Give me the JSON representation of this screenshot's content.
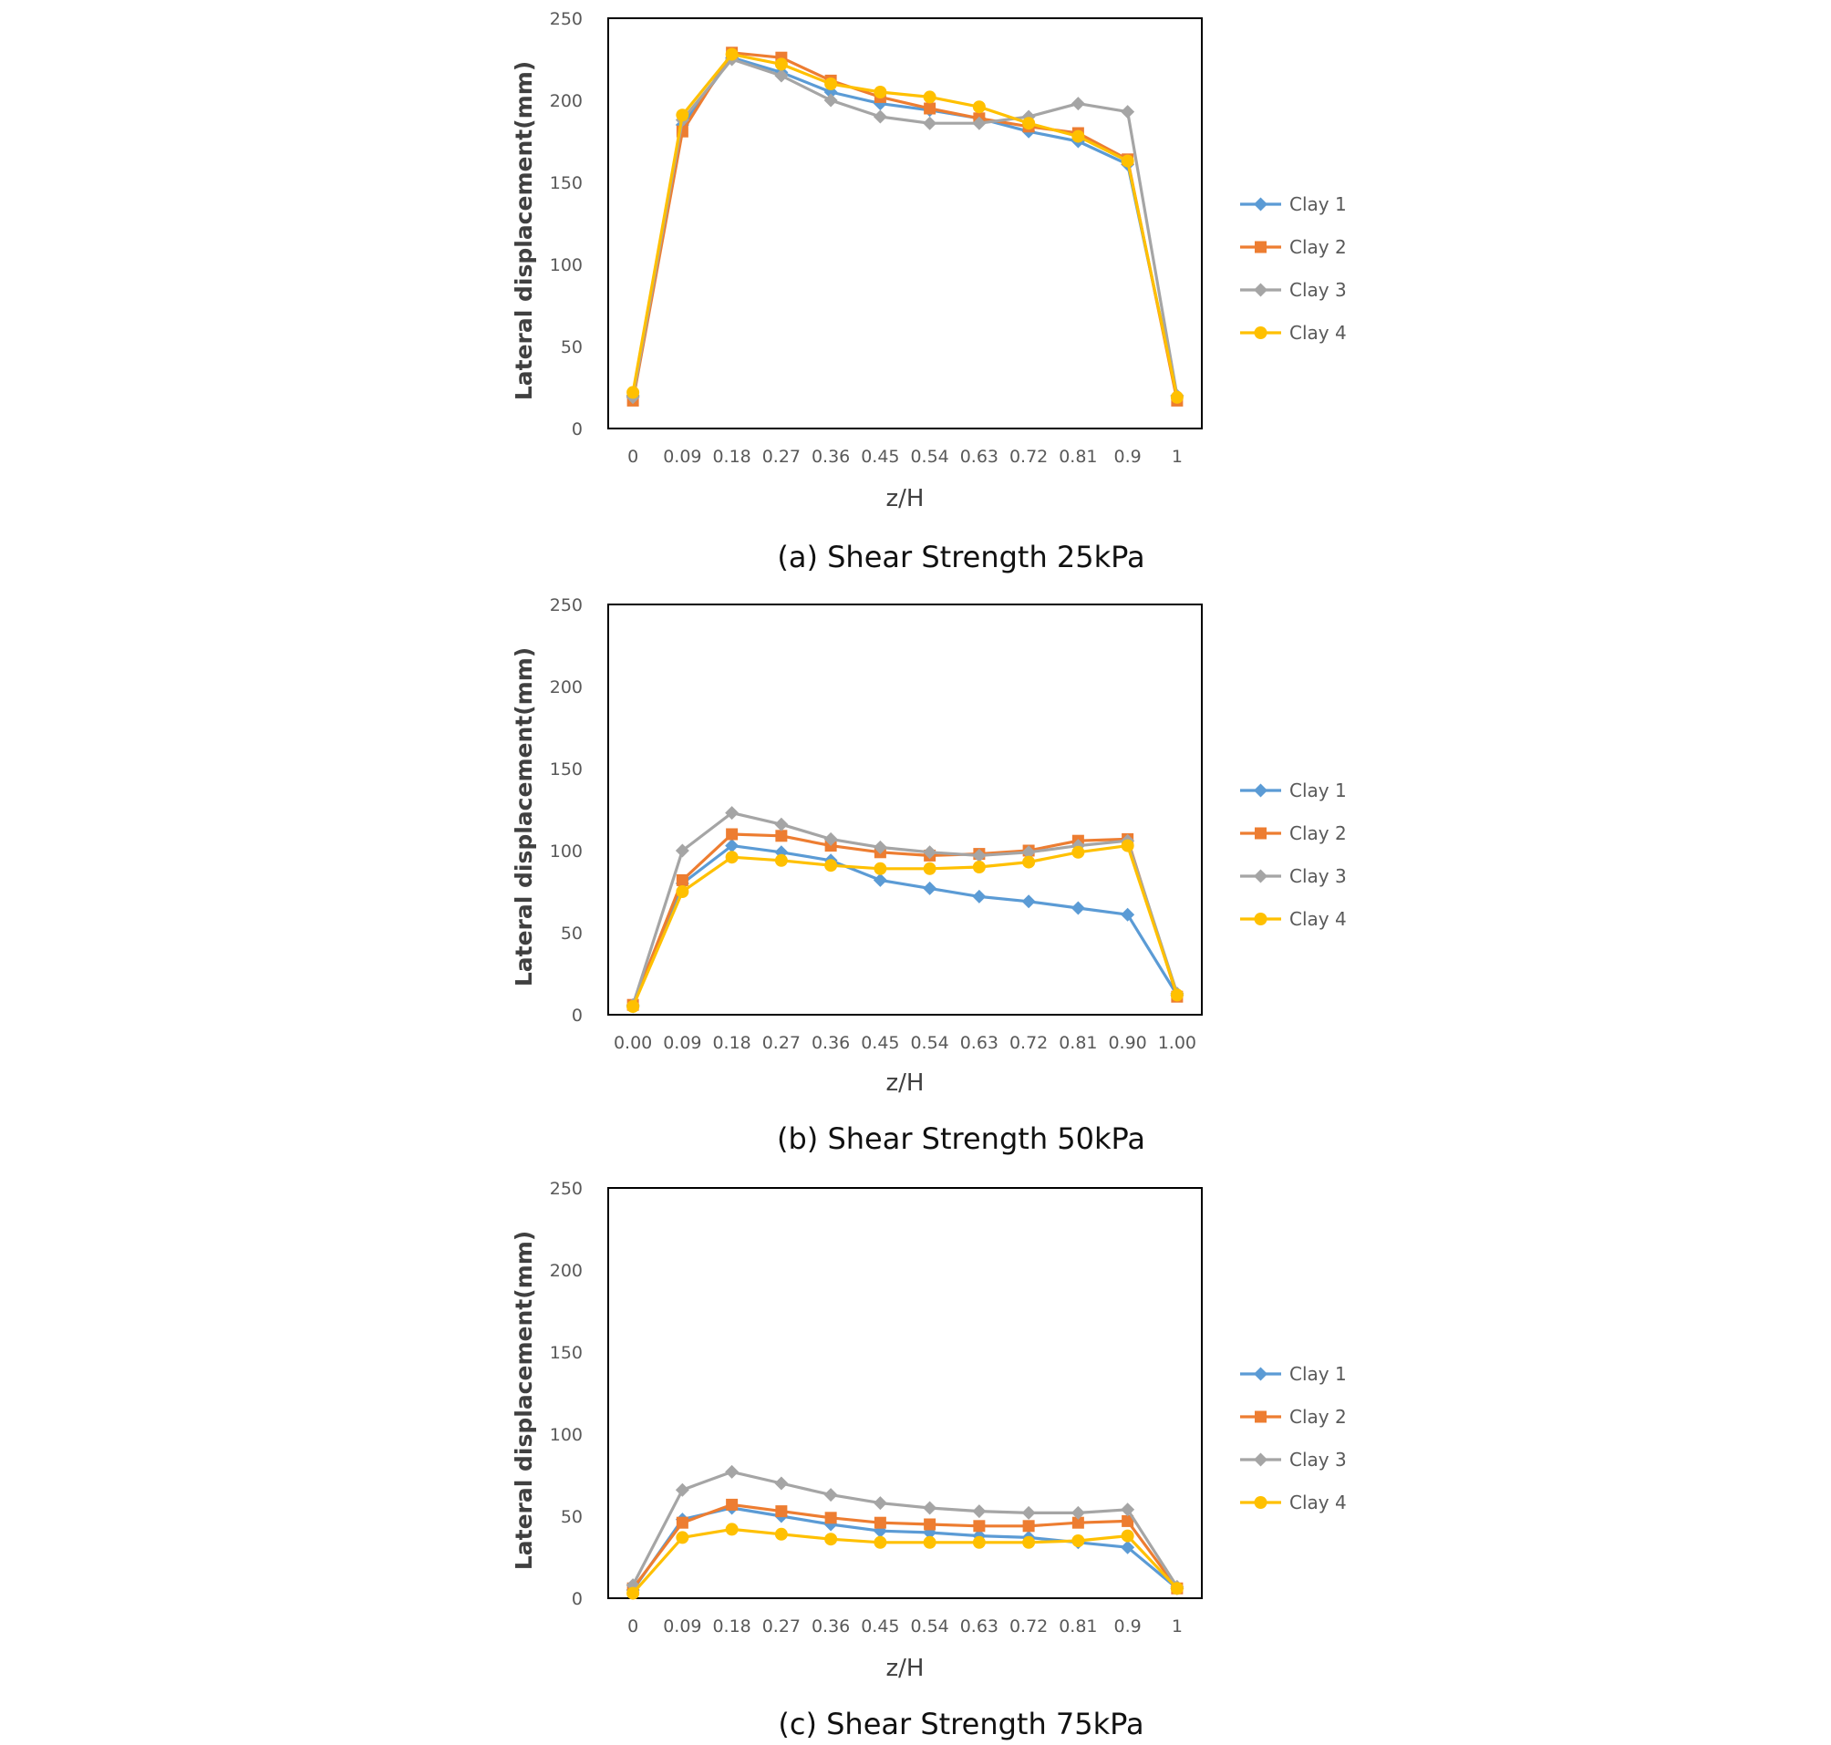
{
  "colors": {
    "Clay 1": "#5B9BD5",
    "Clay 2": "#ED7D31",
    "Clay 3": "#A5A5A5",
    "Clay 4": "#FFC000"
  },
  "chart_data": [
    {
      "type": "line",
      "caption": "(a) Shear Strength 25kPa",
      "xlabel": "z/H",
      "ylabel": "Lateral displacement(mm)",
      "ylim": [
        0,
        250
      ],
      "yticks": [
        "0",
        "50",
        "100",
        "150",
        "200",
        "250"
      ],
      "categories": [
        "0",
        "0.09",
        "0.18",
        "0.27",
        "0.36",
        "0.45",
        "0.54",
        "0.63",
        "0.72",
        "0.81",
        "0.9",
        "1"
      ],
      "legend_position": "right",
      "series": [
        {
          "name": "Clay 1",
          "marker": "diamond",
          "values": [
            20,
            185,
            226,
            217,
            205,
            198,
            194,
            189,
            181,
            175,
            161,
            20
          ]
        },
        {
          "name": "Clay 2",
          "marker": "square",
          "values": [
            17,
            181,
            229,
            226,
            212,
            202,
            195,
            189,
            184,
            180,
            164,
            17
          ]
        },
        {
          "name": "Clay 3",
          "marker": "diamond",
          "values": [
            19,
            188,
            225,
            215,
            200,
            190,
            186,
            186,
            190,
            198,
            193,
            20
          ]
        },
        {
          "name": "Clay 4",
          "marker": "circle",
          "values": [
            22,
            191,
            228,
            222,
            210,
            205,
            202,
            196,
            186,
            178,
            163,
            19
          ]
        }
      ]
    },
    {
      "type": "line",
      "caption": "(b) Shear Strength 50kPa",
      "xlabel": "z/H",
      "ylabel": "Lateral displacement(mm)",
      "ylim": [
        0,
        250
      ],
      "yticks": [
        "0",
        "50",
        "100",
        "150",
        "200",
        "250"
      ],
      "categories": [
        "0.00",
        "0.09",
        "0.18",
        "0.27",
        "0.36",
        "0.45",
        "0.54",
        "0.63",
        "0.72",
        "0.81",
        "0.90",
        "1.00"
      ],
      "legend_position": "right",
      "series": [
        {
          "name": "Clay 1",
          "marker": "diamond",
          "values": [
            5,
            80,
            103,
            99,
            94,
            82,
            77,
            72,
            69,
            65,
            61,
            12
          ]
        },
        {
          "name": "Clay 2",
          "marker": "square",
          "values": [
            6,
            82,
            110,
            109,
            103,
            99,
            97,
            98,
            100,
            106,
            107,
            11
          ]
        },
        {
          "name": "Clay 3",
          "marker": "diamond",
          "values": [
            6,
            100,
            123,
            116,
            107,
            102,
            99,
            97,
            99,
            103,
            106,
            13
          ]
        },
        {
          "name": "Clay 4",
          "marker": "circle",
          "values": [
            5,
            75,
            96,
            94,
            91,
            89,
            89,
            90,
            93,
            99,
            103,
            12
          ]
        }
      ]
    },
    {
      "type": "line",
      "caption": "(c) Shear Strength 75kPa",
      "xlabel": "z/H",
      "ylabel": "Lateral displacement(mm)",
      "ylim": [
        0,
        250
      ],
      "yticks": [
        "0",
        "50",
        "100",
        "150",
        "200",
        "250"
      ],
      "categories": [
        "0",
        "0.09",
        "0.18",
        "0.27",
        "0.36",
        "0.45",
        "0.54",
        "0.63",
        "0.72",
        "0.81",
        "0.9",
        "1"
      ],
      "legend_position": "right",
      "series": [
        {
          "name": "Clay 1",
          "marker": "diamond",
          "values": [
            5,
            48,
            55,
            50,
            45,
            41,
            40,
            38,
            37,
            34,
            31,
            6
          ]
        },
        {
          "name": "Clay 2",
          "marker": "square",
          "values": [
            6,
            46,
            57,
            53,
            49,
            46,
            45,
            44,
            44,
            46,
            47,
            6
          ]
        },
        {
          "name": "Clay 3",
          "marker": "diamond",
          "values": [
            8,
            66,
            77,
            70,
            63,
            58,
            55,
            53,
            52,
            52,
            54,
            7
          ]
        },
        {
          "name": "Clay 4",
          "marker": "circle",
          "values": [
            3,
            37,
            42,
            39,
            36,
            34,
            34,
            34,
            34,
            35,
            38,
            6
          ]
        }
      ]
    }
  ]
}
